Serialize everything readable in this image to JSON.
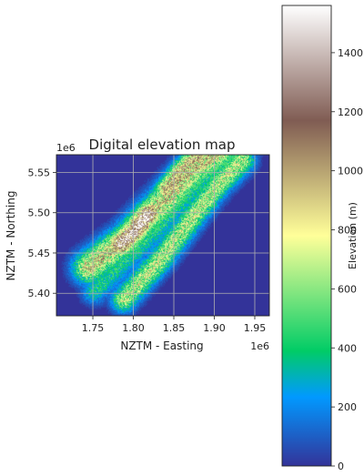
{
  "chart_data": {
    "type": "heatmap",
    "title": "Digital elevation map",
    "xlabel": "NZTM - Easting",
    "ylabel": "NZTM - Northing",
    "x_offset_label": "1e6",
    "y_offset_label": "1e6",
    "xlim": [
      1.705,
      1.968
    ],
    "ylim": [
      5.372,
      5.572
    ],
    "x_ticks": [
      {
        "value": 1.75,
        "label": "1.75"
      },
      {
        "value": 1.8,
        "label": "1.80"
      },
      {
        "value": 1.85,
        "label": "1.85"
      },
      {
        "value": 1.9,
        "label": "1.90"
      },
      {
        "value": 1.95,
        "label": "1.95"
      }
    ],
    "y_ticks": [
      {
        "value": 5.4,
        "label": "5.40"
      },
      {
        "value": 5.45,
        "label": "5.45"
      },
      {
        "value": 5.5,
        "label": "5.50"
      },
      {
        "value": 5.55,
        "label": "5.55"
      }
    ],
    "grid": true,
    "background_value": 0,
    "ridges": [
      {
        "x": [
          1.745,
          1.792,
          1.838,
          1.875,
          1.905
        ],
        "y": [
          5.432,
          5.468,
          5.515,
          5.555,
          5.575
        ],
        "width": 0.013,
        "peak_elevation": 850
      },
      {
        "x": [
          1.785,
          1.802,
          1.818
        ],
        "y": [
          5.462,
          5.478,
          5.498
        ],
        "width": 0.009,
        "peak_elevation": 1450
      },
      {
        "x": [
          1.788,
          1.832,
          1.87,
          1.905,
          1.935
        ],
        "y": [
          5.392,
          5.44,
          5.49,
          5.535,
          5.565
        ],
        "width": 0.01,
        "peak_elevation": 700
      },
      {
        "x": [
          1.84,
          1.86,
          1.88
        ],
        "y": [
          5.53,
          5.555,
          5.572
        ],
        "width": 0.008,
        "peak_elevation": 950
      },
      {
        "x": [
          1.752,
          1.79,
          1.835,
          1.875,
          1.915,
          1.95
        ],
        "y": [
          5.402,
          5.44,
          5.485,
          5.53,
          5.565,
          5.59
        ],
        "width": 0.01,
        "peak_elevation": 400
      }
    ],
    "colorbar": {
      "label": "Elevation (m)",
      "vmin": 0,
      "vmax": 1560,
      "ticks": [
        {
          "value": 0,
          "label": "0"
        },
        {
          "value": 200,
          "label": "200"
        },
        {
          "value": 400,
          "label": "400"
        },
        {
          "value": 600,
          "label": "600"
        },
        {
          "value": 800,
          "label": "800"
        },
        {
          "value": 1000,
          "label": "1000"
        },
        {
          "value": 1200,
          "label": "1200"
        },
        {
          "value": 1400,
          "label": "1400"
        }
      ],
      "colormap": [
        {
          "stop": 0.0,
          "color": "#333399"
        },
        {
          "stop": 0.15,
          "color": "#0199ff"
        },
        {
          "stop": 0.25,
          "color": "#01cc66"
        },
        {
          "stop": 0.5,
          "color": "#ffff99"
        },
        {
          "stop": 0.75,
          "color": "#805c53"
        },
        {
          "stop": 1.0,
          "color": "#ffffff"
        }
      ]
    }
  }
}
